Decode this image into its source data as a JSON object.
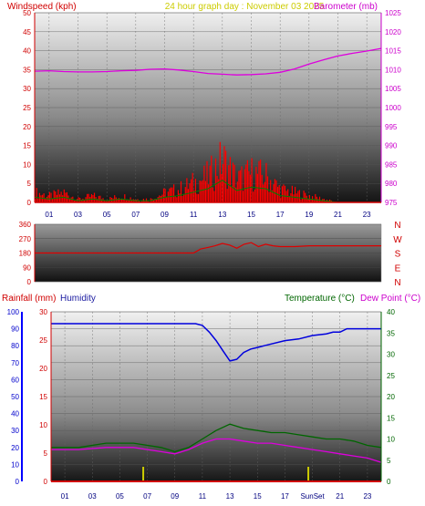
{
  "header": {
    "wind_title": "Windspeed (kph)",
    "center_title": "24 hour graph day : November 03 2025",
    "baro_title": "Barometer (mb)"
  },
  "footer": {
    "rain_title": "Rainfall (mm)",
    "humidity_title": "Humidity",
    "temp_title": "Temperature (°C)",
    "dew_title": "Dew Point (°C)"
  },
  "colors": {
    "wind": "#ff0000",
    "gust_fill": "#ff0000",
    "wind_avg": "#008000",
    "barometer": "#dd00dd",
    "direction": "#dd0000",
    "humidity": "#0000dd",
    "temperature": "#006600",
    "dew_point": "#dd00dd",
    "rain_axis": "#0000ff",
    "sun": "#cccc00"
  },
  "chart_data": [
    {
      "type": "line",
      "name": "wind-barometer",
      "x_tick_labels": [
        "01",
        "03",
        "05",
        "07",
        "09",
        "11",
        "13",
        "15",
        "17",
        "19",
        "21",
        "23"
      ],
      "xlim": [
        0,
        24
      ],
      "left_axis": {
        "label": "Windspeed (kph)",
        "ylim": [
          0,
          50
        ],
        "ticks": [
          0,
          5,
          10,
          15,
          20,
          25,
          30,
          35,
          40,
          45,
          50
        ]
      },
      "right_axis": {
        "label": "Barometer (mb)",
        "ylim": [
          975,
          1025
        ],
        "ticks": [
          975,
          980,
          985,
          990,
          995,
          1000,
          1005,
          1010,
          1015,
          1020,
          1025
        ]
      },
      "series": [
        {
          "name": "Barometer (mb)",
          "axis": "right",
          "x": [
            0,
            1,
            2,
            3,
            4,
            5,
            6,
            7,
            8,
            9,
            10,
            11,
            12,
            13,
            14,
            15,
            16,
            17,
            18,
            19,
            20,
            21,
            22,
            23,
            24
          ],
          "y": [
            1009.6,
            1009.7,
            1009.5,
            1009.4,
            1009.4,
            1009.5,
            1009.7,
            1009.8,
            1010.1,
            1010.2,
            1009.9,
            1009.5,
            1009.0,
            1008.8,
            1008.6,
            1008.7,
            1008.9,
            1009.3,
            1010.2,
            1011.5,
            1012.6,
            1013.6,
            1014.3,
            1014.9,
            1015.6
          ]
        },
        {
          "name": "Windspeed (kph)",
          "axis": "left",
          "x": [
            0,
            1,
            2,
            3,
            4,
            5,
            6,
            7,
            8,
            9,
            10,
            11,
            12,
            13,
            14,
            15,
            16,
            17,
            18,
            19,
            20,
            21,
            22,
            23,
            24
          ],
          "y": [
            3,
            2,
            3,
            1,
            2,
            1,
            2,
            1,
            1,
            3,
            4,
            6,
            8,
            13,
            7,
            9,
            8,
            4,
            3,
            2,
            1,
            0,
            0,
            0,
            0
          ]
        }
      ]
    },
    {
      "type": "line",
      "name": "wind-direction",
      "x_tick_labels": [
        "01",
        "03",
        "05",
        "07",
        "09",
        "11",
        "13",
        "15",
        "17",
        "19",
        "21",
        "23"
      ],
      "xlim": [
        0,
        24
      ],
      "left_axis": {
        "ylim": [
          0,
          360
        ],
        "ticks": [
          0,
          90,
          180,
          270,
          360
        ]
      },
      "right_labels": [
        "N",
        "W",
        "S",
        "E",
        "N"
      ],
      "series": [
        {
          "name": "Wind direction",
          "x": [
            0,
            2,
            4,
            6,
            8,
            10,
            11,
            11.5,
            12,
            12.5,
            13,
            13.5,
            14,
            14.5,
            15,
            15.5,
            16,
            16.5,
            17,
            18,
            19,
            20,
            21,
            22,
            23,
            24
          ],
          "y": [
            180,
            180,
            180,
            180,
            180,
            180,
            180,
            205,
            215,
            225,
            240,
            230,
            210,
            235,
            245,
            220,
            235,
            225,
            220,
            220,
            225,
            225,
            225,
            225,
            225,
            225
          ]
        }
      ]
    },
    {
      "type": "line",
      "name": "rain-humidity-temperature",
      "x_tick_labels": [
        "01",
        "03",
        "05",
        "07",
        "09",
        "11",
        "13",
        "15",
        "17",
        "SunSet",
        "21",
        "23"
      ],
      "xlim": [
        0,
        24
      ],
      "humidity_axis": {
        "label": "Humidity",
        "ylim": [
          0,
          100
        ],
        "ticks": [
          0,
          10,
          20,
          30,
          40,
          50,
          60,
          70,
          80,
          90,
          100
        ]
      },
      "rain_axis": {
        "label": "Rainfall (mm)",
        "ylim": [
          0,
          30
        ],
        "ticks": [
          0,
          5,
          10,
          15,
          20,
          25,
          30
        ]
      },
      "temp_axis": {
        "label": "Temperature (°C)",
        "ylim": [
          0,
          40
        ],
        "ticks": [
          0,
          5,
          10,
          15,
          20,
          25,
          30,
          35,
          40
        ]
      },
      "markers": [
        {
          "x": 6.7
        },
        {
          "x": 18.7
        }
      ],
      "series": [
        {
          "name": "Humidity",
          "axis": "humidity",
          "x": [
            0,
            2,
            4,
            6,
            8,
            9.5,
            10.5,
            11,
            11.5,
            12,
            12.5,
            13,
            13.5,
            14,
            14.5,
            15,
            15.5,
            16,
            17,
            18,
            19,
            20,
            20.5,
            21,
            21.5,
            22,
            23,
            24
          ],
          "y": [
            93,
            93,
            93,
            93,
            93,
            93,
            93,
            92,
            88,
            83,
            77,
            71,
            72,
            76,
            78,
            79,
            80,
            81,
            83,
            84,
            86,
            87,
            88,
            88,
            90,
            90,
            90,
            90
          ]
        },
        {
          "name": "Temperature (°C)",
          "axis": "temp",
          "x": [
            0,
            2,
            4,
            6,
            8,
            9,
            10,
            11,
            12,
            13,
            14,
            15,
            16,
            17,
            18,
            19,
            20,
            21,
            22,
            23,
            24
          ],
          "y": [
            8,
            8,
            9,
            9,
            8,
            7,
            8,
            10,
            12,
            13.5,
            12.5,
            12,
            11.5,
            11.5,
            11,
            10.5,
            10,
            10,
            9.5,
            8.5,
            8
          ]
        },
        {
          "name": "Dew Point (°C)",
          "axis": "temp",
          "x": [
            0,
            2,
            4,
            6,
            8,
            9,
            10,
            11,
            12,
            13,
            14,
            15,
            16,
            17,
            18,
            19,
            20,
            21,
            22,
            23,
            24
          ],
          "y": [
            7.5,
            7.5,
            8,
            8,
            7,
            6.5,
            7.5,
            9,
            10,
            10,
            9.5,
            9,
            9,
            8.5,
            8,
            7.5,
            7,
            6.5,
            6,
            5.5,
            4.5
          ]
        },
        {
          "name": "Rainfall (mm)",
          "axis": "rain",
          "x": [
            0,
            24
          ],
          "y": [
            0,
            0
          ]
        }
      ]
    }
  ]
}
